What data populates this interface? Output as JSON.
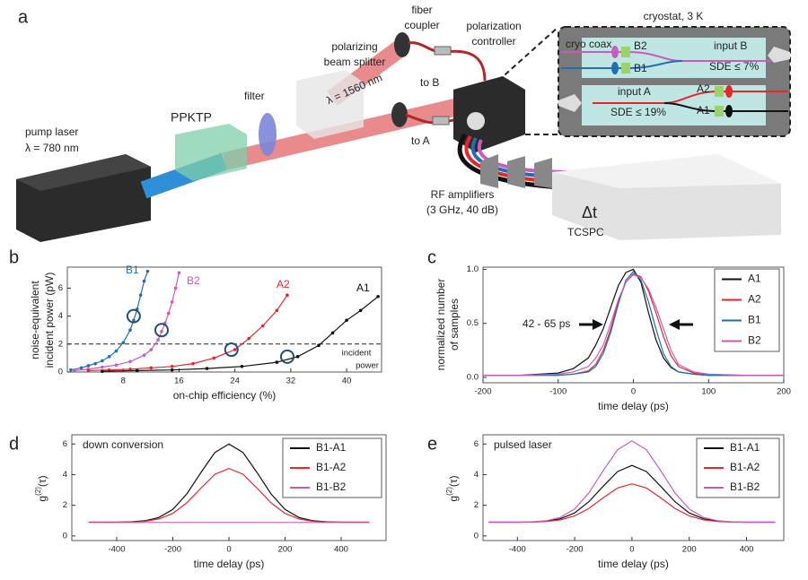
{
  "diagram": {
    "panel_label": "a",
    "pump_laser": [
      "pump laser",
      "λ = 780 nm"
    ],
    "crystal": "PPKTP",
    "filter": "filter",
    "splitter": [
      "polarizing",
      "beam splitter"
    ],
    "beam": "λ = 1560 nm",
    "coupler": [
      "fiber",
      "coupler"
    ],
    "controller": [
      "polarization",
      "controller"
    ],
    "to_b": "to B",
    "to_a": "to A",
    "cryostat": {
      "title": "cryostat, 3 K",
      "coax": "cryo coax",
      "b2": "B2",
      "b1": "B1",
      "input_b": "input B",
      "sde_b": "SDE ≤ 7%",
      "a2": "A2",
      "a1": "A1",
      "input_a": "input A",
      "sde_a": "SDE ≤ 19%"
    },
    "amplifiers": [
      "RF amplifiers",
      "(3 GHz, 40 dB)"
    ],
    "delta_t": "Δt",
    "tcspc": "TCSPC"
  },
  "chart_data": [
    {
      "type": "line",
      "panel_label": "b",
      "xlabel": "on-chip efficiency (%)",
      "ylabel": [
        "noise-equivalent",
        "incident power (pW)"
      ],
      "xlim": [
        0,
        45
      ],
      "ylim": [
        0,
        7.5
      ],
      "xticks": [
        8,
        16,
        24,
        32,
        40
      ],
      "yticks": [
        0,
        2,
        4,
        6
      ],
      "grid": false,
      "incident_power": 2,
      "incident_label": [
        "incident",
        "power"
      ],
      "series": [
        {
          "name": "B1",
          "color": "#1f6fb5",
          "x": [
            0.5,
            2,
            3,
            4,
            5,
            6,
            7,
            8,
            9,
            9.5,
            10,
            10.5,
            11,
            11.5
          ],
          "values": [
            0.15,
            0.3,
            0.45,
            0.6,
            0.8,
            1.1,
            1.5,
            2.1,
            3.0,
            3.7,
            4.5,
            5.5,
            6.5,
            7.2
          ]
        },
        {
          "name": "B2",
          "color": "#c75cbf",
          "x": [
            1,
            3,
            5,
            7,
            9,
            11,
            12,
            13,
            13.5,
            14,
            14.5,
            15,
            15.5,
            16
          ],
          "values": [
            0.1,
            0.2,
            0.35,
            0.5,
            0.75,
            1.2,
            1.6,
            2.3,
            2.9,
            3.5,
            4.2,
            5.0,
            6.0,
            7.1
          ]
        },
        {
          "name": "A2",
          "color": "#e8262a",
          "x": [
            3,
            6,
            9,
            12,
            15,
            18,
            21,
            24,
            26,
            28,
            30,
            31.5
          ],
          "values": [
            0.1,
            0.15,
            0.2,
            0.3,
            0.4,
            0.6,
            1.0,
            1.6,
            2.4,
            3.3,
            4.4,
            5.5
          ]
        },
        {
          "name": "A1",
          "color": "#111111",
          "x": [
            5,
            10,
            15,
            20,
            25,
            30,
            33,
            36,
            38,
            40,
            42,
            44.5
          ],
          "values": [
            0.05,
            0.1,
            0.15,
            0.25,
            0.4,
            0.7,
            1.1,
            1.9,
            2.8,
            3.7,
            4.4,
            5.4
          ]
        }
      ],
      "circles": [
        {
          "x": 9.5,
          "y": 4
        },
        {
          "x": 13.5,
          "y": 3
        },
        {
          "x": 23.5,
          "y": 1.6
        },
        {
          "x": 31.5,
          "y": 1.1
        }
      ],
      "circle_color": "#1f4e79"
    },
    {
      "type": "line",
      "panel_label": "c",
      "xlabel": "time delay (ps)",
      "ylabel": [
        "normalized number",
        "of samples"
      ],
      "xlim": [
        -200,
        200
      ],
      "ylim": [
        -0.05,
        1.02
      ],
      "xticks": [
        -200,
        -100,
        0,
        100,
        200
      ],
      "yticks": [
        {
          "value": 0,
          "label": "0.0"
        },
        0.5,
        {
          "value": 1,
          "label": "1.0"
        }
      ],
      "grid": false,
      "legend": "upper right",
      "annotation": "42 - 65 ps",
      "x": [
        -200,
        -150,
        -100,
        -80,
        -60,
        -50,
        -40,
        -30,
        -20,
        -10,
        0,
        10,
        20,
        30,
        40,
        50,
        60,
        80,
        100,
        150,
        200
      ],
      "series": [
        {
          "name": "A1",
          "color": "#111111",
          "values": [
            0.02,
            0.02,
            0.04,
            0.08,
            0.18,
            0.3,
            0.45,
            0.65,
            0.85,
            0.97,
            1.0,
            0.88,
            0.6,
            0.35,
            0.18,
            0.09,
            0.05,
            0.03,
            0.02,
            0.02,
            0.02
          ]
        },
        {
          "name": "A2",
          "color": "#e8262a",
          "values": [
            0.02,
            0.02,
            0.02,
            0.03,
            0.06,
            0.12,
            0.25,
            0.45,
            0.7,
            0.88,
            0.96,
            0.93,
            0.8,
            0.6,
            0.38,
            0.2,
            0.1,
            0.04,
            0.02,
            0.02,
            0.02
          ]
        },
        {
          "name": "B1",
          "color": "#1f6fb5",
          "values": [
            0.02,
            0.02,
            0.02,
            0.03,
            0.05,
            0.1,
            0.22,
            0.42,
            0.68,
            0.9,
            0.98,
            0.9,
            0.7,
            0.45,
            0.22,
            0.1,
            0.05,
            0.03,
            0.02,
            0.02,
            0.02
          ]
        },
        {
          "name": "B2",
          "color": "#c75cbf",
          "values": [
            0.02,
            0.02,
            0.03,
            0.05,
            0.1,
            0.18,
            0.3,
            0.5,
            0.72,
            0.88,
            0.95,
            0.92,
            0.82,
            0.65,
            0.45,
            0.25,
            0.12,
            0.05,
            0.03,
            0.02,
            0.02
          ]
        }
      ]
    },
    {
      "type": "line",
      "panel_label": "d",
      "xlabel": "time delay (ps)",
      "ylabel": [
        "g",
        "(2)",
        "(τ)"
      ],
      "xlim": [
        -560,
        560
      ],
      "ylim": [
        -0.3,
        6.6
      ],
      "xticks": [
        -400,
        -200,
        0,
        200,
        400
      ],
      "yticks": [
        0,
        2,
        4,
        6
      ],
      "grid": false,
      "legend": "upper right",
      "annotation": "down conversion",
      "x": [
        -500,
        -450,
        -400,
        -350,
        -300,
        -250,
        -200,
        -150,
        -100,
        -50,
        0,
        50,
        100,
        150,
        200,
        250,
        300,
        350,
        400,
        450,
        500
      ],
      "series": [
        {
          "name": "B1-A1",
          "color": "#111111",
          "values": [
            0.9,
            0.9,
            0.9,
            0.92,
            0.99,
            1.2,
            1.73,
            2.74,
            4.14,
            5.45,
            6.0,
            5.45,
            4.14,
            2.74,
            1.73,
            1.2,
            0.99,
            0.92,
            0.9,
            0.9,
            0.9
          ]
        },
        {
          "name": "B1-A2",
          "color": "#e8262a",
          "values": [
            0.9,
            0.9,
            0.9,
            0.91,
            0.96,
            1.11,
            1.47,
            2.16,
            3.12,
            4.03,
            4.4,
            4.03,
            3.12,
            2.16,
            1.47,
            1.11,
            0.96,
            0.91,
            0.9,
            0.9,
            0.9
          ]
        },
        {
          "name": "B1-B2",
          "color": "#c75cbf",
          "values": [
            0.88,
            0.88,
            0.88,
            0.88,
            0.88,
            0.88,
            0.88,
            0.88,
            0.88,
            0.88,
            0.88,
            0.88,
            0.88,
            0.88,
            0.88,
            0.88,
            0.88,
            0.88,
            0.88,
            0.88,
            0.88
          ]
        }
      ]
    },
    {
      "type": "line",
      "panel_label": "e",
      "xlabel": "time delay (ps)",
      "ylabel": [
        "g",
        "(2)",
        "(τ)"
      ],
      "xlim": [
        -520,
        530
      ],
      "ylim": [
        -0.3,
        6.6
      ],
      "xticks": [
        -400,
        -200,
        0,
        200,
        400
      ],
      "yticks": [
        0,
        2,
        4,
        6
      ],
      "grid": false,
      "legend": "upper right",
      "annotation": "pulsed laser",
      "x": [
        -500,
        -450,
        -400,
        -350,
        -300,
        -250,
        -200,
        -150,
        -100,
        -50,
        0,
        50,
        100,
        150,
        200,
        250,
        300,
        350,
        400,
        450,
        500
      ],
      "series": [
        {
          "name": "B1-A1",
          "color": "#111111",
          "values": [
            0.9,
            0.9,
            0.9,
            0.91,
            0.96,
            1.12,
            1.5,
            2.24,
            3.25,
            4.2,
            4.6,
            4.2,
            3.25,
            2.24,
            1.5,
            1.12,
            0.96,
            0.91,
            0.9,
            0.9,
            0.9
          ]
        },
        {
          "name": "B1-A2",
          "color": "#e8262a",
          "values": [
            0.9,
            0.9,
            0.9,
            0.91,
            0.94,
            1.05,
            1.31,
            1.8,
            2.49,
            3.13,
            3.4,
            3.13,
            2.49,
            1.8,
            1.31,
            1.05,
            0.94,
            0.91,
            0.9,
            0.9,
            0.9
          ]
        },
        {
          "name": "B1-B2",
          "color": "#c75cbf",
          "values": [
            0.9,
            0.9,
            0.9,
            0.92,
            0.99,
            1.21,
            1.76,
            2.81,
            4.27,
            5.63,
            6.2,
            5.63,
            4.27,
            2.81,
            1.76,
            1.21,
            0.99,
            0.92,
            0.9,
            0.9,
            0.9
          ]
        }
      ]
    }
  ]
}
